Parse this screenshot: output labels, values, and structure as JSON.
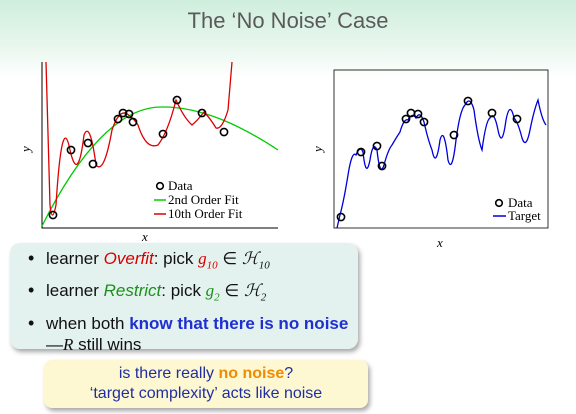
{
  "title": "The ‘No Noise’ Case",
  "left_plot": {
    "ylabel": "y",
    "xlabel": "x",
    "legend": [
      "Data",
      "2nd Order Fit",
      "10th Order Fit"
    ],
    "colors": {
      "data": "#000000",
      "fit2": "#00cc00",
      "fit10": "#dd0000"
    }
  },
  "right_plot": {
    "ylabel": "y",
    "xlabel": "x",
    "legend": [
      "Data",
      "Target"
    ],
    "colors": {
      "data": "#000000",
      "target": "#0000dd"
    }
  },
  "bullets": {
    "b1_pre": "learner ",
    "b1_emph": "Overfit",
    "b1_post": ": pick ",
    "b1_g": "g",
    "b1_gsub": "10",
    "b1_in": " ∈ ",
    "b1_H": "ℋ",
    "b1_Hsub": "10",
    "b2_pre": "learner ",
    "b2_emph": "Restrict",
    "b2_post": ": pick ",
    "b2_g": "g",
    "b2_gsub": "2",
    "b2_in": " ∈ ",
    "b2_H": "ℋ",
    "b2_Hsub": "2",
    "b3_pre": "when both ",
    "b3_bold": "know that there is no noise",
    "b3_mid": " —",
    "b3_R": "R",
    "b3_post": " still wins"
  },
  "callout": {
    "line1_pre": "is there really ",
    "line1_emph": "no noise",
    "line1_post": "?",
    "line2": "‘target complexity’ acts like noise"
  }
}
